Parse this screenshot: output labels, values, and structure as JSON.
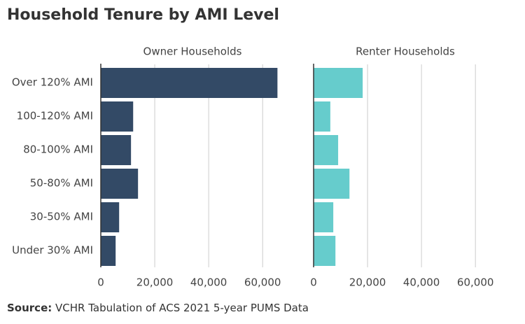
{
  "title": "Household Tenure by AMI Level",
  "source": {
    "label": "Source:",
    "text": "VCHR Tabulation of ACS 2021 5-year PUMS Data"
  },
  "chart_data": {
    "type": "bar",
    "orientation": "horizontal",
    "panels": true,
    "categories": [
      "Over 120% AMI",
      "100-120% AMI",
      "80-100% AMI",
      "50-80% AMI",
      "30-50% AMI",
      "Under 30% AMI"
    ],
    "series": [
      {
        "name": "Owner Households",
        "color": "#334a66",
        "values": [
          65500,
          12000,
          11200,
          13800,
          6800,
          5500
        ]
      },
      {
        "name": "Renter Households",
        "color": "#66cccc",
        "values": [
          18200,
          6200,
          9100,
          13300,
          7300,
          8100
        ]
      }
    ],
    "xlim": [
      0,
      68000
    ],
    "xticks": [
      0,
      {
        "value": 20000,
        "label": "20,000"
      },
      {
        "value": 40000,
        "label": "40,000"
      },
      {
        "value": 60000,
        "label": "60,000"
      }
    ],
    "grid": true
  }
}
